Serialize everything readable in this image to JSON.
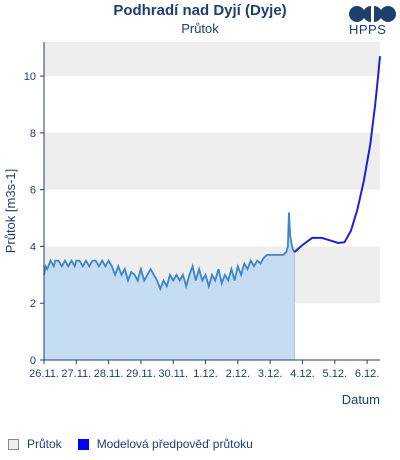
{
  "header": {
    "title": "Podhradí nad Dyjí (Dyje)",
    "subtitle": "Průtok",
    "logo_text": "HPPS"
  },
  "colors": {
    "band": "#eeeeee",
    "observed_fill": "#c5dcf2",
    "observed_line": "#3a86c8",
    "forecast_line": "#1a23d6",
    "axis": "#1f3f6e"
  },
  "legend": {
    "items": [
      {
        "label": "Průtok",
        "swatch": "#eeeeee",
        "border": "#888888"
      },
      {
        "label": "Modelová předpověď průtoku",
        "swatch": "#0000ff",
        "border": "#0000ff"
      }
    ]
  },
  "chart_data": {
    "type": "area",
    "title": "Podhradí nad Dyjí (Dyje)",
    "subtitle": "Průtok",
    "xlabel": "Datum",
    "ylabel": "Průtok [m3s-1]",
    "ylim": [
      0,
      11.2
    ],
    "xlim": [
      0,
      10.4
    ],
    "y_ticks": [
      0,
      2,
      4,
      6,
      8,
      10
    ],
    "x_ticks": [
      {
        "x": 0,
        "label": "26.11."
      },
      {
        "x": 1,
        "label": "27.11."
      },
      {
        "x": 2,
        "label": "28.11."
      },
      {
        "x": 3,
        "label": "29.11."
      },
      {
        "x": 4,
        "label": "30.11."
      },
      {
        "x": 5,
        "label": "1.12."
      },
      {
        "x": 6,
        "label": "2.12."
      },
      {
        "x": 7,
        "label": "3.12."
      },
      {
        "x": 8,
        "label": "4.12."
      },
      {
        "x": 9,
        "label": "5.12."
      },
      {
        "x": 10,
        "label": "6.12."
      }
    ],
    "bands": [
      [
        2,
        4
      ],
      [
        6,
        8
      ],
      [
        10,
        11.2
      ]
    ],
    "grid": false,
    "legend_position": "bottom-left",
    "series": [
      {
        "name": "Průtok",
        "style": "area",
        "x": [
          0,
          0.05,
          0.1,
          0.2,
          0.3,
          0.35,
          0.45,
          0.55,
          0.65,
          0.75,
          0.85,
          0.95,
          1.0,
          1.1,
          1.2,
          1.3,
          1.4,
          1.5,
          1.6,
          1.7,
          1.8,
          1.9,
          2.0,
          2.1,
          2.2,
          2.3,
          2.4,
          2.5,
          2.6,
          2.7,
          2.8,
          2.9,
          3.0,
          3.1,
          3.2,
          3.3,
          3.4,
          3.5,
          3.6,
          3.7,
          3.8,
          3.9,
          4.0,
          4.1,
          4.2,
          4.3,
          4.4,
          4.5,
          4.6,
          4.7,
          4.8,
          4.9,
          5.0,
          5.1,
          5.2,
          5.3,
          5.4,
          5.5,
          5.6,
          5.7,
          5.8,
          5.9,
          6.0,
          6.1,
          6.2,
          6.3,
          6.4,
          6.5,
          6.6,
          6.7,
          6.8,
          6.9,
          7.0,
          7.1,
          7.2,
          7.3,
          7.4,
          7.5,
          7.55,
          7.58,
          7.62,
          7.66,
          7.7,
          7.75
        ],
        "values": [
          3.0,
          3.3,
          3.2,
          3.5,
          3.3,
          3.5,
          3.5,
          3.3,
          3.5,
          3.3,
          3.5,
          3.3,
          3.5,
          3.5,
          3.3,
          3.5,
          3.3,
          3.5,
          3.5,
          3.3,
          3.5,
          3.3,
          3.5,
          3.3,
          3.0,
          3.3,
          3.0,
          3.2,
          2.8,
          3.1,
          3.0,
          2.8,
          3.2,
          2.8,
          3.0,
          3.2,
          3.0,
          2.8,
          2.5,
          2.8,
          2.6,
          3.0,
          2.8,
          3.0,
          2.8,
          3.0,
          2.6,
          3.0,
          3.3,
          2.8,
          3.2,
          2.8,
          3.0,
          2.6,
          3.0,
          2.8,
          3.2,
          2.7,
          3.0,
          2.8,
          3.2,
          2.8,
          3.3,
          3.0,
          3.4,
          3.2,
          3.5,
          3.3,
          3.5,
          3.4,
          3.6,
          3.7,
          3.7,
          3.7,
          3.7,
          3.7,
          3.7,
          3.8,
          4.0,
          5.2,
          4.4,
          4.1,
          3.9,
          3.8
        ]
      },
      {
        "name": "Modelová předpověď průtoku",
        "style": "line",
        "x": [
          7.75,
          8.0,
          8.3,
          8.6,
          8.9,
          9.1,
          9.3,
          9.5,
          9.7,
          9.9,
          10.1,
          10.25,
          10.35,
          10.4
        ],
        "values": [
          3.8,
          4.05,
          4.3,
          4.3,
          4.2,
          4.12,
          4.15,
          4.55,
          5.3,
          6.3,
          7.6,
          9.0,
          10.1,
          10.7
        ]
      }
    ]
  }
}
